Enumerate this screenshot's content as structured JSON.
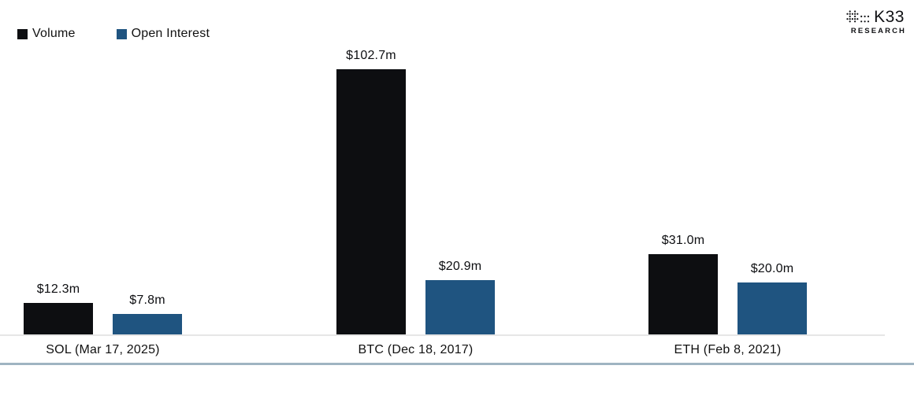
{
  "brand": {
    "name": "K33",
    "subtitle": "RESEARCH"
  },
  "legend": {
    "items": [
      {
        "label": "Volume",
        "color": "#0d0e11"
      },
      {
        "label": "Open Interest",
        "color": "#1f5480"
      }
    ]
  },
  "chart_data": {
    "type": "bar",
    "title": "",
    "categories": [
      "SOL (Mar 17, 2025)",
      "BTC (Dec 18, 2017)",
      "ETH (Feb 8, 2021)"
    ],
    "series": [
      {
        "name": "Volume",
        "color": "#0d0e11",
        "values": [
          12.3,
          102.7,
          31.0
        ],
        "value_labels": [
          "$12.3m",
          "$102.7m",
          "$31.0m"
        ]
      },
      {
        "name": "Open Interest",
        "color": "#1f5480",
        "values": [
          7.8,
          20.9,
          20.0
        ],
        "value_labels": [
          "$7.8m",
          "$20.9m",
          "$20.0m"
        ]
      }
    ],
    "ylim": [
      0,
      102.7
    ],
    "grid": false,
    "legend_position": "top-left",
    "value_unit": "$m",
    "axis_line_color": "#e6e6e6",
    "bottom_rule_color": "#9fb4c2"
  }
}
